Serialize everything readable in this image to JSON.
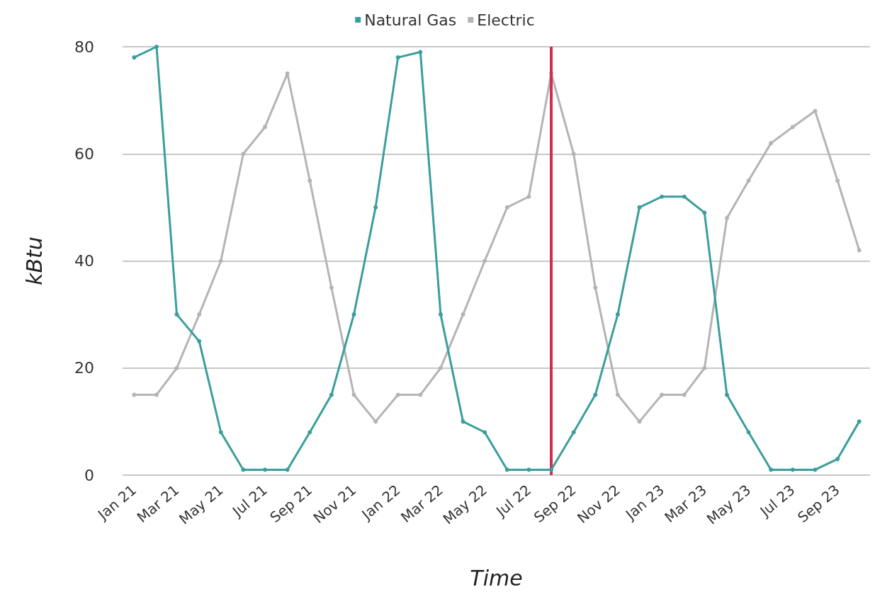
{
  "chart_data": {
    "type": "line",
    "xlabel": "Time",
    "ylabel": "kBtu",
    "x": [
      "2021-01",
      "2021-02",
      "2021-03",
      "2021-04",
      "2021-05",
      "2021-06",
      "2021-07",
      "2021-08",
      "2021-09",
      "2021-10",
      "2021-11",
      "2021-12",
      "2022-01",
      "2022-02",
      "2022-03",
      "2022-04",
      "2022-05",
      "2022-06",
      "2022-07",
      "2022-08",
      "2022-09",
      "2022-10",
      "2022-11",
      "2022-12",
      "2023-01",
      "2023-02",
      "2023-03",
      "2023-04",
      "2023-05",
      "2023-06",
      "2023-07",
      "2023-08",
      "2023-09",
      "2023-10"
    ],
    "xlim": [
      "2020-12-16",
      "2023-10-16"
    ],
    "xticks": [
      {
        "value": "2021-01",
        "label": "Jan 21"
      },
      {
        "value": "2021-03",
        "label": "Mar 21"
      },
      {
        "value": "2021-05",
        "label": "May 21"
      },
      {
        "value": "2021-07",
        "label": "Jul 21"
      },
      {
        "value": "2021-09",
        "label": "Sep 21"
      },
      {
        "value": "2021-11",
        "label": "Nov 21"
      },
      {
        "value": "2022-01",
        "label": "Jan 22"
      },
      {
        "value": "2022-03",
        "label": "Mar 22"
      },
      {
        "value": "2022-05",
        "label": "May 22"
      },
      {
        "value": "2022-07",
        "label": "Jul 22"
      },
      {
        "value": "2022-09",
        "label": "Sep 22"
      },
      {
        "value": "2022-11",
        "label": "Nov 22"
      },
      {
        "value": "2023-01",
        "label": "Jan 23"
      },
      {
        "value": "2023-03",
        "label": "Mar 23"
      },
      {
        "value": "2023-05",
        "label": "May 23"
      },
      {
        "value": "2023-07",
        "label": "Jul 23"
      },
      {
        "value": "2023-09",
        "label": "Sep 23"
      }
    ],
    "series": [
      {
        "name": "Natural Gas",
        "color": "#3a9e9c",
        "values": [
          78,
          80,
          30,
          25,
          8,
          1,
          1,
          1,
          8,
          15,
          30,
          50,
          78,
          79,
          30,
          10,
          8,
          1,
          1,
          1,
          8,
          15,
          30,
          50,
          52,
          52,
          49,
          15,
          8,
          1,
          1,
          1,
          3,
          10
        ]
      },
      {
        "name": "Electric",
        "color": "#b4b4b4",
        "values": [
          15,
          15,
          20,
          30,
          40,
          60,
          65,
          75,
          55,
          35,
          15,
          10,
          15,
          15,
          20,
          30,
          40,
          50,
          52,
          75,
          60,
          35,
          15,
          10,
          15,
          15,
          20,
          48,
          55,
          62,
          65,
          68,
          55,
          42
        ]
      }
    ],
    "ylim": [
      0,
      80
    ],
    "yticks": [
      0,
      20,
      40,
      60,
      80
    ],
    "grid": "y",
    "legend": "top",
    "marker": "circle",
    "line_style": "solid",
    "ref_lines": [
      {
        "axis": "x",
        "value": "2022-08",
        "color": "#d0304f"
      }
    ]
  }
}
